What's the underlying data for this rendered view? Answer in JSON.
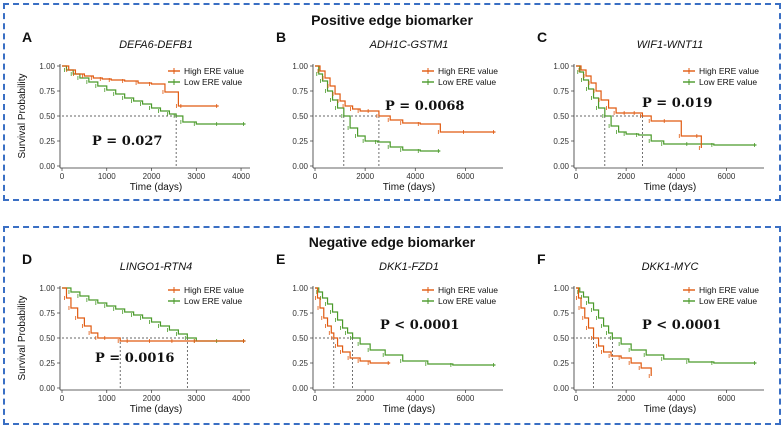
{
  "sections": {
    "positive_title": "Positive edge biomarker",
    "negative_title": "Negative edge biomarker"
  },
  "colors": {
    "high": "#e05a10",
    "low": "#4a9a2a",
    "frame": "#3a6fc4"
  },
  "chart_data": [
    {
      "panel": "A",
      "type": "line",
      "title": "DEFA6-DEFB1",
      "xlabel": "Time (days)",
      "ylabel": "Survival Probability",
      "xlim": [
        0,
        4200
      ],
      "ylim": [
        0,
        1
      ],
      "xticks": [
        0,
        1000,
        2000,
        3000,
        4000
      ],
      "yticks": [
        0,
        0.25,
        0.5,
        0.75,
        1.0
      ],
      "ytick_labels": [
        "0.00",
        "0.25",
        "0.50",
        "0.75",
        "1.00"
      ],
      "legend": [
        "High ERE value",
        "Low ERE value"
      ],
      "p_value": "P = 0.027",
      "median_lines": [
        2550
      ],
      "series": [
        {
          "name": "High ERE value",
          "x": [
            0,
            150,
            300,
            500,
            700,
            900,
            1100,
            1400,
            1700,
            2000,
            2300,
            2600,
            2700,
            3500
          ],
          "y": [
            1.0,
            0.96,
            0.92,
            0.9,
            0.88,
            0.87,
            0.86,
            0.85,
            0.83,
            0.82,
            0.74,
            0.6,
            0.6,
            0.6
          ]
        },
        {
          "name": "Low ERE value",
          "x": [
            0,
            100,
            250,
            400,
            600,
            800,
            1000,
            1200,
            1400,
            1600,
            1800,
            2000,
            2200,
            2400,
            2550,
            2700,
            3000,
            3500,
            4100
          ],
          "y": [
            1.0,
            0.96,
            0.92,
            0.88,
            0.84,
            0.8,
            0.76,
            0.72,
            0.68,
            0.65,
            0.62,
            0.58,
            0.55,
            0.52,
            0.5,
            0.44,
            0.42,
            0.42,
            0.42
          ]
        }
      ]
    },
    {
      "panel": "B",
      "type": "line",
      "title": "ADH1C-GSTM1",
      "xlabel": "Time (days)",
      "ylabel": "",
      "xlim": [
        0,
        7500
      ],
      "ylim": [
        0,
        1
      ],
      "xticks": [
        0,
        2000,
        4000,
        6000
      ],
      "yticks": [
        0,
        0.25,
        0.5,
        0.75,
        1.0
      ],
      "ytick_labels": [
        "0.00",
        "0.25",
        "0.50",
        "0.75",
        "1.00"
      ],
      "legend": [
        "High ERE value",
        "Low ERE value"
      ],
      "p_value": "P = 0.0068",
      "median_lines": [
        1150,
        2550
      ],
      "series": [
        {
          "name": "High ERE value",
          "x": [
            0,
            200,
            400,
            600,
            800,
            1000,
            1200,
            1500,
            1800,
            2200,
            2550,
            3000,
            3500,
            4200,
            5000,
            6000,
            7200
          ],
          "y": [
            1.0,
            0.95,
            0.88,
            0.8,
            0.72,
            0.65,
            0.6,
            0.57,
            0.55,
            0.55,
            0.5,
            0.46,
            0.43,
            0.42,
            0.34,
            0.34,
            0.34
          ]
        },
        {
          "name": "Low ERE value",
          "x": [
            0,
            150,
            300,
            500,
            700,
            900,
            1150,
            1400,
            1700,
            2000,
            2500,
            3000,
            3500,
            4200,
            5000
          ],
          "y": [
            1.0,
            0.92,
            0.85,
            0.75,
            0.66,
            0.58,
            0.5,
            0.38,
            0.3,
            0.25,
            0.24,
            0.19,
            0.16,
            0.15,
            0.15
          ]
        }
      ]
    },
    {
      "panel": "C",
      "type": "line",
      "title": "WIF1-WNT11",
      "xlabel": "Time (days)",
      "ylabel": "",
      "xlim": [
        0,
        7500
      ],
      "ylim": [
        0,
        1
      ],
      "xticks": [
        0,
        2000,
        4000,
        6000
      ],
      "yticks": [
        0,
        0.25,
        0.5,
        0.75,
        1.0
      ],
      "ytick_labels": [
        "0.00",
        "0.25",
        "0.50",
        "0.75",
        "1.00"
      ],
      "legend": [
        "High ERE value",
        "Low ERE value"
      ],
      "p_value": "P = 0.019",
      "median_lines": [
        1150,
        2650
      ],
      "series": [
        {
          "name": "High ERE value",
          "x": [
            0,
            200,
            400,
            600,
            800,
            1000,
            1300,
            1600,
            2000,
            2400,
            2650,
            3000,
            3600,
            4200,
            4900,
            5000
          ],
          "y": [
            1.0,
            0.96,
            0.9,
            0.83,
            0.75,
            0.66,
            0.58,
            0.53,
            0.53,
            0.53,
            0.5,
            0.45,
            0.45,
            0.3,
            0.3,
            0.18
          ]
        },
        {
          "name": "Low ERE value",
          "x": [
            0,
            150,
            300,
            500,
            700,
            900,
            1150,
            1400,
            1700,
            2000,
            2500,
            3000,
            3500,
            4500,
            5500,
            7200
          ],
          "y": [
            1.0,
            0.94,
            0.86,
            0.77,
            0.68,
            0.58,
            0.5,
            0.4,
            0.34,
            0.32,
            0.31,
            0.25,
            0.22,
            0.22,
            0.21,
            0.21
          ]
        }
      ]
    },
    {
      "panel": "D",
      "type": "line",
      "title": "LINGO1-RTN4",
      "xlabel": "Time (days)",
      "ylabel": "Survival Probability",
      "xlim": [
        0,
        4200
      ],
      "ylim": [
        0,
        1
      ],
      "xticks": [
        0,
        1000,
        2000,
        3000,
        4000
      ],
      "yticks": [
        0,
        0.25,
        0.5,
        0.75,
        1.0
      ],
      "ytick_labels": [
        "0.00",
        "0.25",
        "0.50",
        "0.75",
        "1.00"
      ],
      "legend": [
        "High ERE value",
        "Low ERE value"
      ],
      "p_value": "P = 0.0016",
      "median_lines": [
        1300,
        2800
      ],
      "series": [
        {
          "name": "High ERE value",
          "x": [
            0,
            100,
            200,
            350,
            500,
            650,
            800,
            1000,
            1300,
            1500,
            2000,
            2500,
            3000,
            4100
          ],
          "y": [
            1.0,
            0.9,
            0.8,
            0.7,
            0.62,
            0.55,
            0.5,
            0.5,
            0.47,
            0.47,
            0.47,
            0.47,
            0.47,
            0.47
          ]
        },
        {
          "name": "Low ERE value",
          "x": [
            0,
            200,
            400,
            600,
            800,
            1000,
            1200,
            1400,
            1600,
            1800,
            2000,
            2200,
            2400,
            2600,
            2800,
            3000,
            3500,
            4100
          ],
          "y": [
            1.0,
            0.96,
            0.92,
            0.88,
            0.85,
            0.82,
            0.79,
            0.76,
            0.73,
            0.7,
            0.66,
            0.62,
            0.58,
            0.54,
            0.5,
            0.47,
            0.47,
            0.47
          ]
        }
      ]
    },
    {
      "panel": "E",
      "type": "line",
      "title": "DKK1-FZD1",
      "xlabel": "Time (days)",
      "ylabel": "",
      "xlim": [
        0,
        7500
      ],
      "ylim": [
        0,
        1
      ],
      "xticks": [
        0,
        2000,
        4000,
        6000
      ],
      "yticks": [
        0,
        0.25,
        0.5,
        0.75,
        1.0
      ],
      "ytick_labels": [
        "0.00",
        "0.25",
        "0.50",
        "0.75",
        "1.00"
      ],
      "legend": [
        "High ERE value",
        "Low ERE value"
      ],
      "p_value": "P < 0.0001",
      "median_lines": [
        750,
        1500
      ],
      "series": [
        {
          "name": "High ERE value",
          "x": [
            0,
            100,
            200,
            350,
            500,
            650,
            750,
            900,
            1100,
            1400,
            1800,
            2200,
            3000
          ],
          "y": [
            1.0,
            0.9,
            0.8,
            0.7,
            0.62,
            0.55,
            0.5,
            0.42,
            0.36,
            0.3,
            0.27,
            0.25,
            0.25
          ]
        },
        {
          "name": "Low ERE value",
          "x": [
            0,
            150,
            300,
            500,
            700,
            900,
            1100,
            1300,
            1500,
            1800,
            2200,
            2800,
            3500,
            4500,
            5500,
            7200
          ],
          "y": [
            1.0,
            0.96,
            0.9,
            0.84,
            0.76,
            0.68,
            0.6,
            0.55,
            0.5,
            0.44,
            0.38,
            0.33,
            0.27,
            0.24,
            0.23,
            0.23
          ]
        }
      ]
    },
    {
      "panel": "F",
      "type": "line",
      "title": "DKK1-MYC",
      "xlabel": "Time (days)",
      "ylabel": "",
      "xlim": [
        0,
        7500
      ],
      "ylim": [
        0,
        1
      ],
      "xticks": [
        0,
        2000,
        4000,
        6000
      ],
      "yticks": [
        0,
        0.25,
        0.5,
        0.75,
        1.0
      ],
      "ytick_labels": [
        "0.00",
        "0.25",
        "0.50",
        "0.75",
        "1.00"
      ],
      "legend": [
        "High ERE value",
        "Low ERE value"
      ],
      "p_value": "P < 0.0001",
      "median_lines": [
        700,
        1450
      ],
      "series": [
        {
          "name": "High ERE value",
          "x": [
            0,
            100,
            200,
            350,
            500,
            700,
            900,
            1100,
            1400,
            1800,
            2200,
            2600,
            3000
          ],
          "y": [
            1.0,
            0.9,
            0.8,
            0.7,
            0.6,
            0.5,
            0.42,
            0.36,
            0.32,
            0.3,
            0.25,
            0.2,
            0.12
          ]
        },
        {
          "name": "Low ERE value",
          "x": [
            0,
            150,
            300,
            500,
            700,
            900,
            1100,
            1300,
            1450,
            1800,
            2200,
            2800,
            3500,
            4500,
            5500,
            7200
          ],
          "y": [
            1.0,
            0.96,
            0.91,
            0.85,
            0.78,
            0.7,
            0.62,
            0.55,
            0.5,
            0.44,
            0.38,
            0.33,
            0.29,
            0.26,
            0.25,
            0.25
          ]
        }
      ]
    }
  ]
}
